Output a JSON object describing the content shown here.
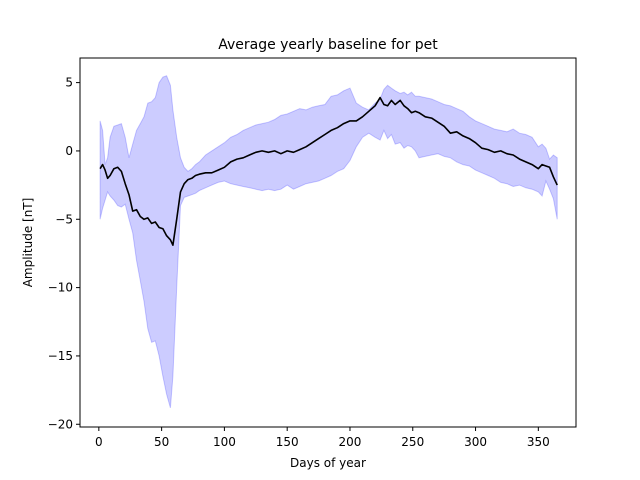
{
  "chart_data": {
    "type": "line",
    "title": "Average yearly baseline for pet",
    "xlabel": "Days of year",
    "ylabel": "Amplitude [nT]",
    "xlim": [
      -15,
      380
    ],
    "ylim": [
      -20.2,
      6.8
    ],
    "xticks": [
      0,
      50,
      100,
      150,
      200,
      250,
      300,
      350
    ],
    "yticks": [
      5,
      0,
      -5,
      -10,
      -15,
      -20
    ],
    "grid": false,
    "legend": "none",
    "series": [
      {
        "role": "mean",
        "color": "#000000",
        "x": [
          1,
          3,
          5,
          7,
          9,
          12,
          15,
          18,
          21,
          24,
          27,
          30,
          33,
          36,
          39,
          42,
          45,
          48,
          51,
          54,
          57,
          59,
          62,
          65,
          68,
          71,
          74,
          77,
          80,
          85,
          90,
          95,
          100,
          105,
          110,
          115,
          120,
          125,
          130,
          135,
          140,
          145,
          150,
          155,
          160,
          165,
          170,
          175,
          180,
          185,
          190,
          195,
          200,
          205,
          210,
          215,
          220,
          224,
          227,
          230,
          233,
          236,
          240,
          243,
          246,
          249,
          252,
          255,
          260,
          265,
          270,
          275,
          280,
          285,
          290,
          295,
          300,
          305,
          310,
          315,
          320,
          325,
          330,
          335,
          340,
          345,
          350,
          353,
          356,
          359,
          362,
          365
        ],
        "values": [
          -1.3,
          -1.0,
          -1.4,
          -2.0,
          -1.8,
          -1.3,
          -1.2,
          -1.5,
          -2.4,
          -3.2,
          -4.4,
          -4.3,
          -4.8,
          -5.0,
          -4.9,
          -5.3,
          -5.2,
          -5.6,
          -5.7,
          -6.2,
          -6.5,
          -6.9,
          -5.0,
          -3.0,
          -2.4,
          -2.1,
          -2.0,
          -1.8,
          -1.7,
          -1.6,
          -1.6,
          -1.4,
          -1.2,
          -0.8,
          -0.6,
          -0.5,
          -0.3,
          -0.1,
          0.0,
          -0.1,
          0.0,
          -0.2,
          0.0,
          -0.1,
          0.1,
          0.3,
          0.6,
          0.9,
          1.2,
          1.5,
          1.7,
          2.0,
          2.2,
          2.2,
          2.5,
          2.9,
          3.3,
          3.9,
          3.4,
          3.3,
          3.7,
          3.4,
          3.7,
          3.3,
          3.1,
          2.8,
          2.9,
          2.8,
          2.5,
          2.4,
          2.1,
          1.8,
          1.3,
          1.4,
          1.1,
          0.9,
          0.6,
          0.2,
          0.1,
          -0.1,
          0.0,
          -0.2,
          -0.3,
          -0.6,
          -0.8,
          -1.0,
          -1.3,
          -1.0,
          -1.1,
          -1.2,
          -1.9,
          -2.5
        ]
      },
      {
        "role": "range-band",
        "color": "#0000ff",
        "opacity": 0.2,
        "x": [
          1,
          3,
          5,
          7,
          9,
          12,
          15,
          18,
          21,
          24,
          27,
          30,
          33,
          36,
          39,
          42,
          45,
          48,
          51,
          54,
          57,
          59,
          62,
          65,
          68,
          71,
          74,
          77,
          80,
          85,
          90,
          95,
          100,
          105,
          110,
          115,
          120,
          125,
          130,
          135,
          140,
          145,
          150,
          155,
          160,
          165,
          170,
          175,
          180,
          185,
          190,
          195,
          200,
          205,
          210,
          215,
          220,
          224,
          227,
          230,
          233,
          236,
          240,
          243,
          246,
          249,
          252,
          255,
          260,
          265,
          270,
          275,
          280,
          285,
          290,
          295,
          300,
          305,
          310,
          315,
          320,
          325,
          330,
          335,
          340,
          345,
          350,
          353,
          356,
          359,
          362,
          365
        ],
        "upper": [
          2.2,
          1.5,
          -1.0,
          -0.5,
          1.0,
          1.8,
          1.9,
          2.0,
          1.0,
          -0.5,
          0.5,
          1.5,
          2.0,
          2.5,
          3.5,
          3.6,
          3.9,
          5.0,
          5.4,
          5.5,
          4.8,
          3.0,
          1.0,
          -0.5,
          -1.2,
          -1.5,
          -1.3,
          -1.0,
          -0.8,
          -0.3,
          0.0,
          0.3,
          0.6,
          1.0,
          1.2,
          1.5,
          1.7,
          1.9,
          2.0,
          2.1,
          2.3,
          2.6,
          2.7,
          2.9,
          3.1,
          3.0,
          3.2,
          3.3,
          3.4,
          4.0,
          4.1,
          4.4,
          4.6,
          3.5,
          3.2,
          3.0,
          3.5,
          3.8,
          4.5,
          4.8,
          4.6,
          4.4,
          4.2,
          4.3,
          4.1,
          4.3,
          4.0,
          4.0,
          3.9,
          3.8,
          3.6,
          3.4,
          3.3,
          3.1,
          2.9,
          2.5,
          2.2,
          2.0,
          1.8,
          1.6,
          1.5,
          1.4,
          1.6,
          1.3,
          1.2,
          1.0,
          0.3,
          0.5,
          0.2,
          -0.6,
          -0.3,
          -0.5
        ],
        "lower": [
          -5.0,
          -4.2,
          -3.6,
          -3.0,
          -3.3,
          -3.6,
          -4.0,
          -4.1,
          -3.9,
          -5.0,
          -6.0,
          -8.0,
          -9.5,
          -11.0,
          -13.0,
          -14.0,
          -13.9,
          -15.0,
          -16.5,
          -17.8,
          -18.8,
          -16.5,
          -10.0,
          -4.0,
          -3.4,
          -3.3,
          -3.2,
          -3.1,
          -2.9,
          -2.7,
          -2.5,
          -2.3,
          -2.2,
          -2.4,
          -2.5,
          -2.6,
          -2.7,
          -2.8,
          -2.9,
          -2.8,
          -2.9,
          -2.8,
          -2.5,
          -2.8,
          -2.6,
          -2.4,
          -2.3,
          -2.2,
          -2.0,
          -1.8,
          -1.5,
          -1.3,
          -0.7,
          0.3,
          1.0,
          1.3,
          1.0,
          0.8,
          1.5,
          0.9,
          1.2,
          0.5,
          0.6,
          0.2,
          0.4,
          0.3,
          0.0,
          -0.5,
          -0.4,
          -0.3,
          -0.2,
          -0.4,
          -0.5,
          -0.8,
          -1.0,
          -1.1,
          -1.4,
          -1.6,
          -1.8,
          -2.0,
          -2.3,
          -2.4,
          -2.6,
          -2.5,
          -2.7,
          -2.8,
          -3.0,
          -3.3,
          -2.2,
          -2.8,
          -3.5,
          -5.0
        ]
      }
    ]
  }
}
